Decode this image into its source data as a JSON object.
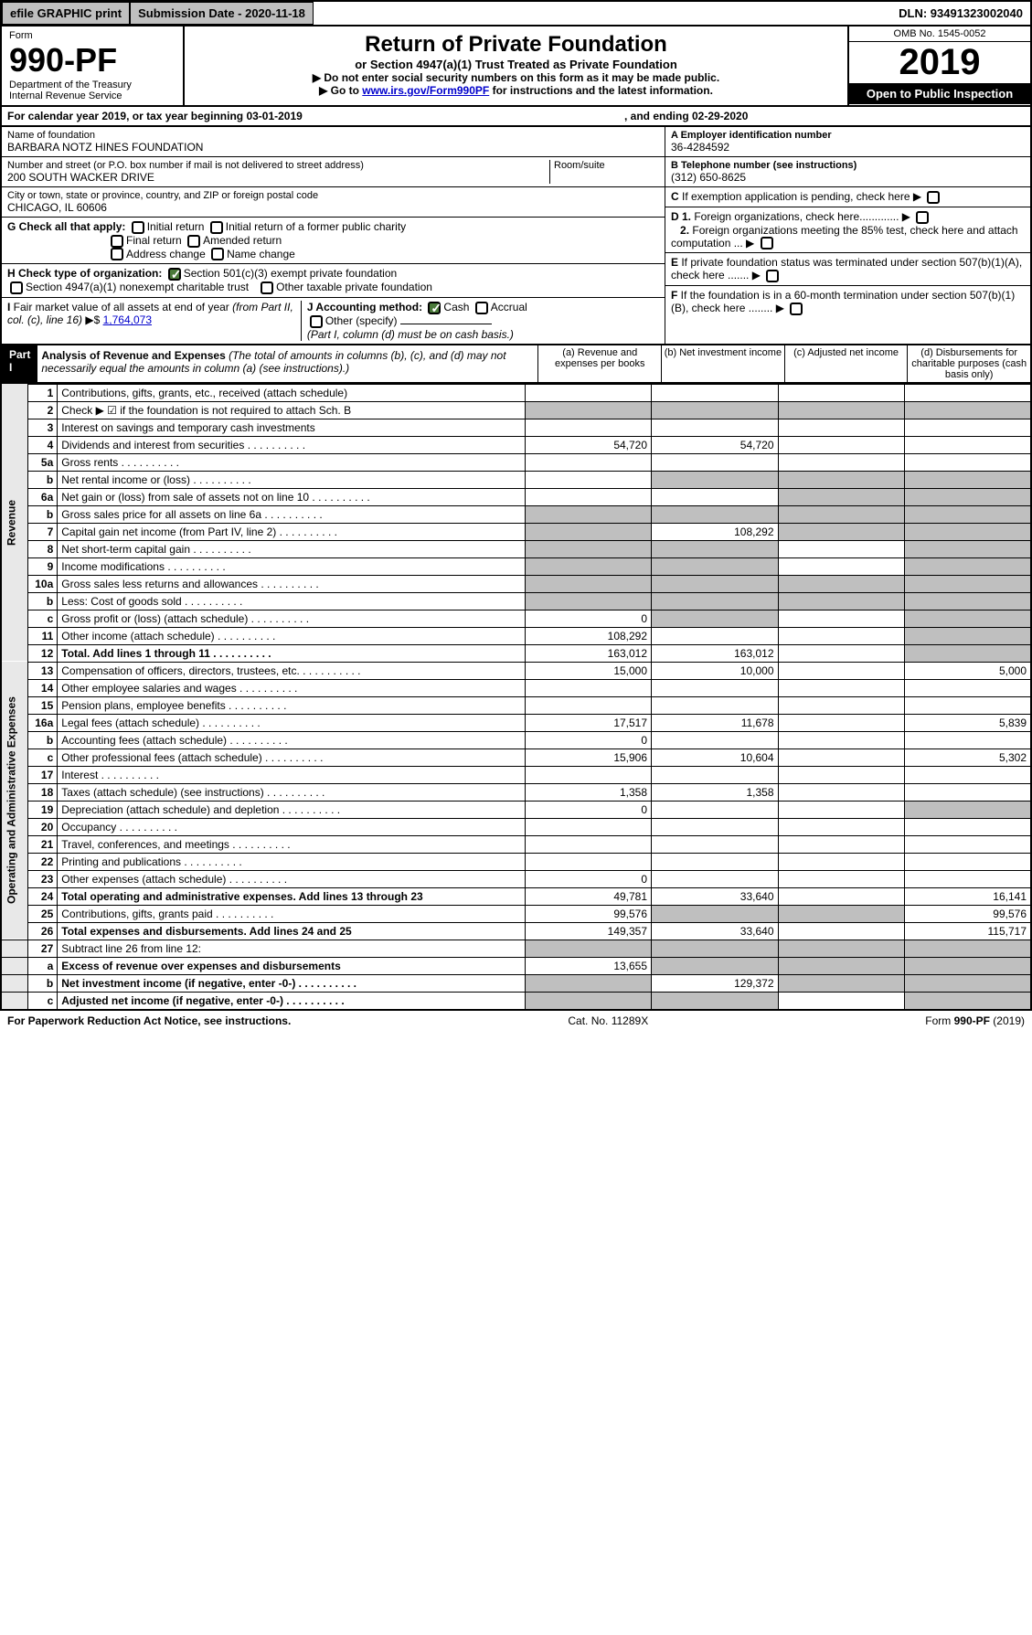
{
  "topbar": {
    "efile": "efile GRAPHIC print",
    "submission": "Submission Date - 2020-11-18",
    "dln": "DLN: 93491323002040"
  },
  "header": {
    "form": "Form",
    "num": "990-PF",
    "dept": "Department of the Treasury\nInternal Revenue Service",
    "title": "Return of Private Foundation",
    "subtitle": "or Section 4947(a)(1) Trust Treated as Private Foundation",
    "note1": "▶ Do not enter social security numbers on this form as it may be made public.",
    "note2_pre": "▶ Go to ",
    "note2_link": "www.irs.gov/Form990PF",
    "note2_post": " for instructions and the latest information.",
    "omb": "OMB No. 1545-0052",
    "year": "2019",
    "open": "Open to Public Inspection"
  },
  "calendar": {
    "text": "For calendar year 2019, or tax year beginning 03-01-2019",
    "ending": ", and ending 02-29-2020"
  },
  "foundation": {
    "name_label": "Name of foundation",
    "name": "BARBARA NOTZ HINES FOUNDATION",
    "addr_label": "Number and street (or P.O. box number if mail is not delivered to street address)",
    "addr": "200 SOUTH WACKER DRIVE",
    "room_label": "Room/suite",
    "city_label": "City or town, state or province, country, and ZIP or foreign postal code",
    "city": "CHICAGO, IL  60606",
    "ein_label": "A Employer identification number",
    "ein": "36-4284592",
    "tel_label": "B Telephone number (see instructions)",
    "tel": "(312) 650-8625",
    "c_label": "C If exemption application is pending, check here",
    "d1": "D 1. Foreign organizations, check here.............",
    "d2": "2. Foreign organizations meeting the 85% test, check here and attach computation ...",
    "e": "E  If private foundation status was terminated under section 507(b)(1)(A), check here .......",
    "f": "F  If the foundation is in a 60-month termination under section 507(b)(1)(B), check here ........"
  },
  "checks": {
    "g_label": "G Check all that apply:",
    "initial": "Initial return",
    "initial_former": "Initial return of a former public charity",
    "final": "Final return",
    "amended": "Amended return",
    "addr_change": "Address change",
    "name_change": "Name change",
    "h_label": "H Check type of organization:",
    "h501": "Section 501(c)(3) exempt private foundation",
    "h4947": "Section 4947(a)(1) nonexempt charitable trust",
    "hother": "Other taxable private foundation",
    "i_label": "I Fair market value of all assets at end of year (from Part II, col. (c), line 16) ▶$ ",
    "i_val": "1,764,073",
    "j_label": "J Accounting method:",
    "j_cash": "Cash",
    "j_accrual": "Accrual",
    "j_other": "Other (specify)",
    "j_note": "(Part I, column (d) must be on cash basis.)"
  },
  "part1": {
    "label": "Part I",
    "title": "Analysis of Revenue and Expenses",
    "title_note": "(The total of amounts in columns (b), (c), and (d) may not necessarily equal the amounts in column (a) (see instructions).)",
    "col_a": "(a)    Revenue and expenses per books",
    "col_b": "(b)  Net investment income",
    "col_c": "(c)  Adjusted net income",
    "col_d": "(d)  Disbursements for charitable purposes (cash basis only)"
  },
  "revenue_label": "Revenue",
  "expenses_label": "Operating and Administrative Expenses",
  "lines": {
    "l1": {
      "n": "1",
      "d": "Contributions, gifts, grants, etc., received (attach schedule)"
    },
    "l2": {
      "n": "2",
      "d": "Check ▶ ☑ if the foundation is not required to attach Sch. B"
    },
    "l3": {
      "n": "3",
      "d": "Interest on savings and temporary cash investments"
    },
    "l4": {
      "n": "4",
      "d": "Dividends and interest from securities",
      "a": "54,720",
      "b": "54,720"
    },
    "l5a": {
      "n": "5a",
      "d": "Gross rents"
    },
    "l5b": {
      "n": "b",
      "d": "Net rental income or (loss)"
    },
    "l6a": {
      "n": "6a",
      "d": "Net gain or (loss) from sale of assets not on line 10"
    },
    "l6b": {
      "n": "b",
      "d": "Gross sales price for all assets on line 6a"
    },
    "l7": {
      "n": "7",
      "d": "Capital gain net income (from Part IV, line 2)",
      "b": "108,292"
    },
    "l8": {
      "n": "8",
      "d": "Net short-term capital gain"
    },
    "l9": {
      "n": "9",
      "d": "Income modifications"
    },
    "l10a": {
      "n": "10a",
      "d": "Gross sales less returns and allowances"
    },
    "l10b": {
      "n": "b",
      "d": "Less: Cost of goods sold"
    },
    "l10c": {
      "n": "c",
      "d": "Gross profit or (loss) (attach schedule)",
      "a": "0"
    },
    "l11": {
      "n": "11",
      "d": "Other income (attach schedule)",
      "a": "108,292"
    },
    "l12": {
      "n": "12",
      "d": "Total. Add lines 1 through 11",
      "a": "163,012",
      "b": "163,012"
    },
    "l13": {
      "n": "13",
      "d": "Compensation of officers, directors, trustees, etc.",
      "a": "15,000",
      "b": "10,000",
      "dd": "5,000"
    },
    "l14": {
      "n": "14",
      "d": "Other employee salaries and wages"
    },
    "l15": {
      "n": "15",
      "d": "Pension plans, employee benefits"
    },
    "l16a": {
      "n": "16a",
      "d": "Legal fees (attach schedule)",
      "a": "17,517",
      "b": "11,678",
      "dd": "5,839"
    },
    "l16b": {
      "n": "b",
      "d": "Accounting fees (attach schedule)",
      "a": "0"
    },
    "l16c": {
      "n": "c",
      "d": "Other professional fees (attach schedule)",
      "a": "15,906",
      "b": "10,604",
      "dd": "5,302"
    },
    "l17": {
      "n": "17",
      "d": "Interest"
    },
    "l18": {
      "n": "18",
      "d": "Taxes (attach schedule) (see instructions)",
      "a": "1,358",
      "b": "1,358"
    },
    "l19": {
      "n": "19",
      "d": "Depreciation (attach schedule) and depletion",
      "a": "0"
    },
    "l20": {
      "n": "20",
      "d": "Occupancy"
    },
    "l21": {
      "n": "21",
      "d": "Travel, conferences, and meetings"
    },
    "l22": {
      "n": "22",
      "d": "Printing and publications"
    },
    "l23": {
      "n": "23",
      "d": "Other expenses (attach schedule)",
      "a": "0"
    },
    "l24": {
      "n": "24",
      "d": "Total operating and administrative expenses. Add lines 13 through 23",
      "a": "49,781",
      "b": "33,640",
      "dd": "16,141"
    },
    "l25": {
      "n": "25",
      "d": "Contributions, gifts, grants paid",
      "a": "99,576",
      "dd": "99,576"
    },
    "l26": {
      "n": "26",
      "d": "Total expenses and disbursements. Add lines 24 and 25",
      "a": "149,357",
      "b": "33,640",
      "dd": "115,717"
    },
    "l27": {
      "n": "27",
      "d": "Subtract line 26 from line 12:"
    },
    "l27a": {
      "n": "a",
      "d": "Excess of revenue over expenses and disbursements",
      "a": "13,655"
    },
    "l27b": {
      "n": "b",
      "d": "Net investment income (if negative, enter -0-)",
      "b": "129,372"
    },
    "l27c": {
      "n": "c",
      "d": "Adjusted net income (if negative, enter -0-)"
    }
  },
  "footer": {
    "left": "For Paperwork Reduction Act Notice, see instructions.",
    "mid": "Cat. No. 11289X",
    "right": "Form 990-PF (2019)"
  }
}
